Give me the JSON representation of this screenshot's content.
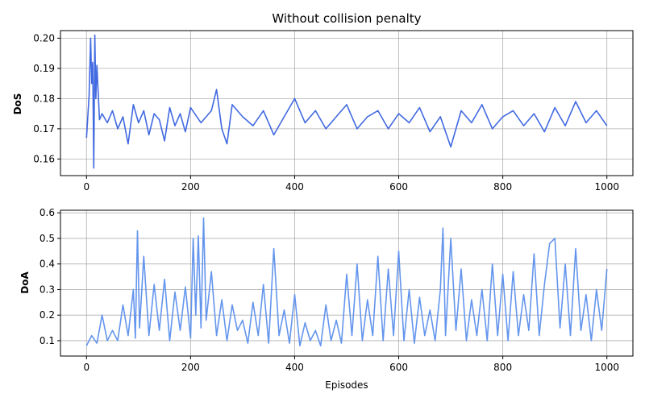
{
  "chart_data": [
    {
      "type": "line",
      "title": "Without collision penalty",
      "xlabel": "",
      "ylabel": "DoS",
      "xlim": [
        -50,
        1050
      ],
      "ylim": [
        0.1545,
        0.2025
      ],
      "xticks": [
        0,
        200,
        400,
        600,
        800,
        1000
      ],
      "yticks": [
        0.16,
        0.17,
        0.18,
        0.19,
        0.2
      ],
      "ytick_labels": [
        "0.16",
        "0.17",
        "0.18",
        "0.19",
        "0.20"
      ],
      "grid": true,
      "color": "#4169e1",
      "series": [
        {
          "x": [
            0,
            5,
            8,
            10,
            12,
            14,
            16,
            18,
            20,
            25,
            30,
            40,
            50,
            60,
            70,
            80,
            90,
            100,
            110,
            120,
            130,
            140,
            150,
            160,
            170,
            180,
            190,
            200,
            220,
            240,
            250,
            260,
            270,
            280,
            300,
            320,
            340,
            360,
            380,
            400,
            420,
            440,
            460,
            480,
            500,
            520,
            540,
            560,
            580,
            600,
            620,
            640,
            660,
            680,
            700,
            720,
            740,
            760,
            780,
            800,
            820,
            840,
            860,
            880,
            900,
            920,
            940,
            960,
            980,
            1000
          ],
          "values": [
            0.167,
            0.181,
            0.2,
            0.185,
            0.192,
            0.157,
            0.201,
            0.18,
            0.191,
            0.173,
            0.175,
            0.172,
            0.176,
            0.17,
            0.174,
            0.165,
            0.178,
            0.172,
            0.176,
            0.168,
            0.175,
            0.173,
            0.166,
            0.177,
            0.171,
            0.175,
            0.169,
            0.177,
            0.172,
            0.176,
            0.183,
            0.17,
            0.165,
            0.178,
            0.174,
            0.171,
            0.176,
            0.168,
            0.174,
            0.18,
            0.172,
            0.176,
            0.17,
            0.174,
            0.178,
            0.17,
            0.174,
            0.176,
            0.17,
            0.175,
            0.172,
            0.177,
            0.169,
            0.174,
            0.164,
            0.176,
            0.172,
            0.178,
            0.17,
            0.174,
            0.176,
            0.171,
            0.175,
            0.169,
            0.177,
            0.171,
            0.179,
            0.172,
            0.176,
            0.171
          ]
        }
      ]
    },
    {
      "type": "line",
      "title": "",
      "xlabel": "Episodes",
      "ylabel": "DoA",
      "xlim": [
        -50,
        1050
      ],
      "ylim": [
        0.04,
        0.61
      ],
      "xticks": [
        0,
        200,
        400,
        600,
        800,
        1000
      ],
      "yticks": [
        0.1,
        0.2,
        0.3,
        0.4,
        0.5,
        0.6
      ],
      "ytick_labels": [
        "0.1",
        "0.2",
        "0.3",
        "0.4",
        "0.5",
        "0.6"
      ],
      "grid": true,
      "color": "#6495ed",
      "series": [
        {
          "x": [
            0,
            10,
            20,
            30,
            40,
            50,
            60,
            70,
            80,
            90,
            94,
            98,
            102,
            110,
            120,
            130,
            140,
            150,
            160,
            170,
            180,
            190,
            200,
            205,
            210,
            215,
            220,
            225,
            230,
            240,
            250,
            260,
            270,
            280,
            290,
            300,
            310,
            320,
            330,
            340,
            350,
            360,
            370,
            380,
            390,
            400,
            410,
            420,
            430,
            440,
            450,
            460,
            470,
            480,
            490,
            500,
            510,
            520,
            530,
            540,
            550,
            560,
            570,
            580,
            590,
            600,
            610,
            620,
            630,
            640,
            650,
            660,
            670,
            680,
            685,
            690,
            700,
            710,
            720,
            730,
            740,
            750,
            760,
            770,
            780,
            790,
            800,
            810,
            820,
            830,
            840,
            850,
            860,
            870,
            880,
            890,
            900,
            910,
            920,
            930,
            940,
            950,
            960,
            970,
            980,
            990,
            1000
          ],
          "values": [
            0.08,
            0.12,
            0.09,
            0.2,
            0.1,
            0.14,
            0.1,
            0.24,
            0.12,
            0.3,
            0.11,
            0.53,
            0.15,
            0.43,
            0.12,
            0.32,
            0.14,
            0.34,
            0.1,
            0.29,
            0.14,
            0.31,
            0.11,
            0.5,
            0.2,
            0.51,
            0.15,
            0.58,
            0.18,
            0.37,
            0.12,
            0.26,
            0.1,
            0.24,
            0.14,
            0.18,
            0.09,
            0.25,
            0.12,
            0.32,
            0.09,
            0.46,
            0.12,
            0.22,
            0.09,
            0.28,
            0.08,
            0.17,
            0.1,
            0.14,
            0.08,
            0.24,
            0.1,
            0.18,
            0.09,
            0.36,
            0.12,
            0.4,
            0.1,
            0.26,
            0.12,
            0.43,
            0.1,
            0.38,
            0.12,
            0.45,
            0.1,
            0.3,
            0.09,
            0.27,
            0.12,
            0.22,
            0.1,
            0.3,
            0.54,
            0.12,
            0.5,
            0.14,
            0.38,
            0.1,
            0.26,
            0.12,
            0.3,
            0.1,
            0.4,
            0.12,
            0.36,
            0.1,
            0.37,
            0.12,
            0.28,
            0.14,
            0.44,
            0.12,
            0.32,
            0.48,
            0.5,
            0.15,
            0.4,
            0.12,
            0.46,
            0.14,
            0.28,
            0.1,
            0.3,
            0.14,
            0.38
          ]
        }
      ]
    }
  ]
}
